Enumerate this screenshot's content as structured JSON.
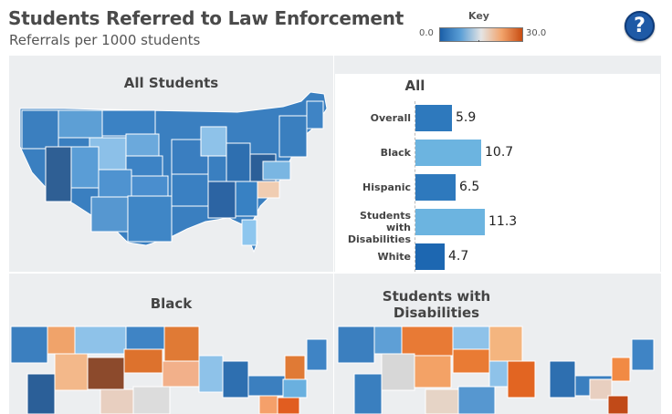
{
  "header": {
    "title": "Students Referred to Law Enforcement",
    "subtitle": "Referrals per 1000 students"
  },
  "key": {
    "label": "Key",
    "min": "0.0",
    "max": "30.0",
    "colors": [
      "#1b5fa8",
      "#5b9fd6",
      "#e4e4e4",
      "#f2a36b",
      "#c84d12"
    ]
  },
  "help_button": {
    "label": "?"
  },
  "panels": {
    "all_students": "All Students",
    "black": "Black",
    "disabilities": "Students with Disabilities"
  },
  "bar_chart": {
    "title": "All",
    "categories": [
      {
        "label": "Overall",
        "value": 5.9,
        "display": "5.9",
        "color": "#2e79bd"
      },
      {
        "label": "Black",
        "value": 10.7,
        "display": "10.7",
        "color": "#6cb4e0"
      },
      {
        "label": "Hispanic",
        "value": 6.5,
        "display": "6.5",
        "color": "#2e79bd"
      },
      {
        "label": "Students with Disabilities",
        "value": 11.3,
        "display": "11.3",
        "color": "#6cb4e0"
      },
      {
        "label": "White",
        "value": 4.7,
        "display": "4.7",
        "color": "#1d67b1"
      }
    ],
    "scale_max": 15.4
  },
  "chart_data": {
    "type": "bar",
    "title": "All",
    "categories": [
      "Overall",
      "Black",
      "Hispanic",
      "Students with Disabilities",
      "White"
    ],
    "values": [
      5.9,
      10.7,
      6.5,
      11.3,
      4.7
    ]
  }
}
